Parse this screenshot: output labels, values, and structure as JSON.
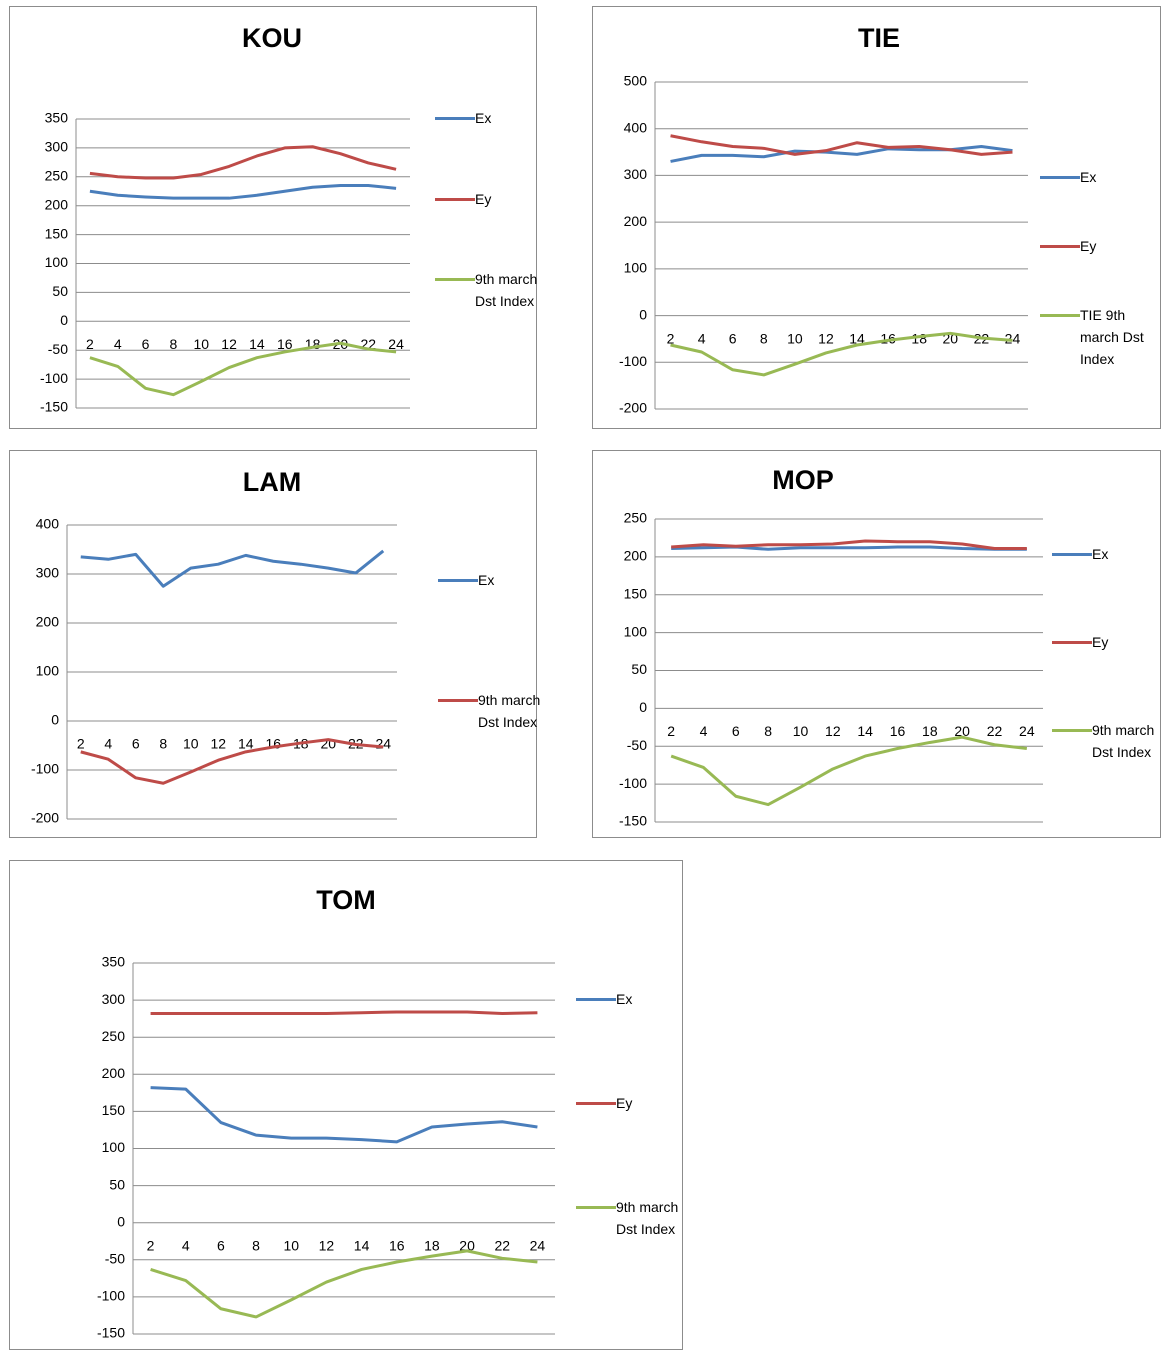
{
  "chart_data": [
    {
      "type": "line",
      "title": "KOU",
      "categories": [
        2,
        4,
        6,
        8,
        10,
        12,
        14,
        16,
        18,
        20,
        22,
        24
      ],
      "ylim": [
        -150,
        350
      ],
      "yticks": [
        -150,
        -100,
        -50,
        0,
        50,
        100,
        150,
        200,
        250,
        300,
        350
      ],
      "grid": true,
      "series": [
        {
          "name": "Ex",
          "color": "#4a7ebb",
          "values": [
            225,
            218,
            215,
            213,
            213,
            213,
            218,
            225,
            232,
            235,
            235,
            230
          ]
        },
        {
          "name": "Ey",
          "color": "#be4b48",
          "values": [
            256,
            250,
            248,
            248,
            254,
            268,
            286,
            300,
            302,
            290,
            274,
            263
          ]
        },
        {
          "name": "9th march Dst Index",
          "color": "#98b954",
          "values": [
            -63,
            -78,
            -116,
            -127,
            -104,
            -80,
            -63,
            -53,
            -45,
            -38,
            -48,
            -53
          ]
        }
      ]
    },
    {
      "type": "line",
      "title": "TIE",
      "categories": [
        2,
        4,
        6,
        8,
        10,
        12,
        14,
        16,
        18,
        20,
        22,
        24
      ],
      "ylim": [
        -200,
        500
      ],
      "yticks": [
        -200,
        -100,
        0,
        100,
        200,
        300,
        400,
        500
      ],
      "grid": true,
      "series": [
        {
          "name": "Ex",
          "color": "#4a7ebb",
          "values": [
            330,
            343,
            343,
            340,
            352,
            350,
            345,
            357,
            355,
            355,
            362,
            353
          ]
        },
        {
          "name": "Ey",
          "color": "#be4b48",
          "values": [
            385,
            372,
            362,
            358,
            345,
            353,
            370,
            360,
            362,
            355,
            345,
            350
          ]
        },
        {
          "name": "TIE 9th march Dst Index",
          "color": "#98b954",
          "values": [
            -63,
            -78,
            -116,
            -127,
            -104,
            -80,
            -63,
            -53,
            -45,
            -38,
            -48,
            -53
          ]
        }
      ]
    },
    {
      "type": "line",
      "title": "LAM",
      "categories": [
        2,
        4,
        6,
        8,
        10,
        12,
        14,
        16,
        18,
        20,
        22,
        24
      ],
      "ylim": [
        -200,
        400
      ],
      "yticks": [
        -200,
        -100,
        0,
        100,
        200,
        300,
        400
      ],
      "grid": true,
      "series": [
        {
          "name": "Ex",
          "color": "#4a7ebb",
          "values": [
            335,
            330,
            340,
            275,
            312,
            320,
            338,
            326,
            320,
            312,
            302,
            347
          ]
        },
        {
          "name": "9th march Dst Index",
          "color": "#be4b48",
          "values": [
            -63,
            -78,
            -116,
            -127,
            -104,
            -80,
            -63,
            -53,
            -45,
            -38,
            -48,
            -53
          ]
        }
      ]
    },
    {
      "type": "line",
      "title": "MOP",
      "categories": [
        2,
        4,
        6,
        8,
        10,
        12,
        14,
        16,
        18,
        20,
        22,
        24
      ],
      "ylim": [
        -150,
        250
      ],
      "yticks": [
        -150,
        -100,
        -50,
        0,
        50,
        100,
        150,
        200,
        250
      ],
      "grid": true,
      "series": [
        {
          "name": "Ex",
          "color": "#4a7ebb",
          "values": [
            211,
            212,
            213,
            210,
            212,
            212,
            212,
            213,
            213,
            211,
            210,
            210
          ]
        },
        {
          "name": "Ey",
          "color": "#be4b48",
          "values": [
            213,
            216,
            214,
            216,
            216,
            217,
            221,
            220,
            220,
            217,
            211,
            211
          ]
        },
        {
          "name": "9th march Dst Index",
          "color": "#98b954",
          "values": [
            -63,
            -78,
            -116,
            -127,
            -104,
            -80,
            -63,
            -53,
            -45,
            -38,
            -48,
            -53
          ]
        }
      ]
    },
    {
      "type": "line",
      "title": "TOM",
      "categories": [
        2,
        4,
        6,
        8,
        10,
        12,
        14,
        16,
        18,
        20,
        22,
        24
      ],
      "ylim": [
        -150,
        350
      ],
      "yticks": [
        -150,
        -100,
        -50,
        0,
        50,
        100,
        150,
        200,
        250,
        300,
        350
      ],
      "grid": true,
      "series": [
        {
          "name": "Ex",
          "color": "#4a7ebb",
          "values": [
            182,
            180,
            135,
            118,
            114,
            114,
            112,
            109,
            129,
            133,
            136,
            129
          ]
        },
        {
          "name": "Ey",
          "color": "#be4b48",
          "values": [
            282,
            282,
            282,
            282,
            282,
            282,
            283,
            284,
            284,
            284,
            282,
            283
          ]
        },
        {
          "name": "9th march Dst Index",
          "color": "#98b954",
          "values": [
            -63,
            -78,
            -116,
            -127,
            -104,
            -80,
            -63,
            -53,
            -45,
            -38,
            -48,
            -53
          ]
        }
      ]
    }
  ]
}
